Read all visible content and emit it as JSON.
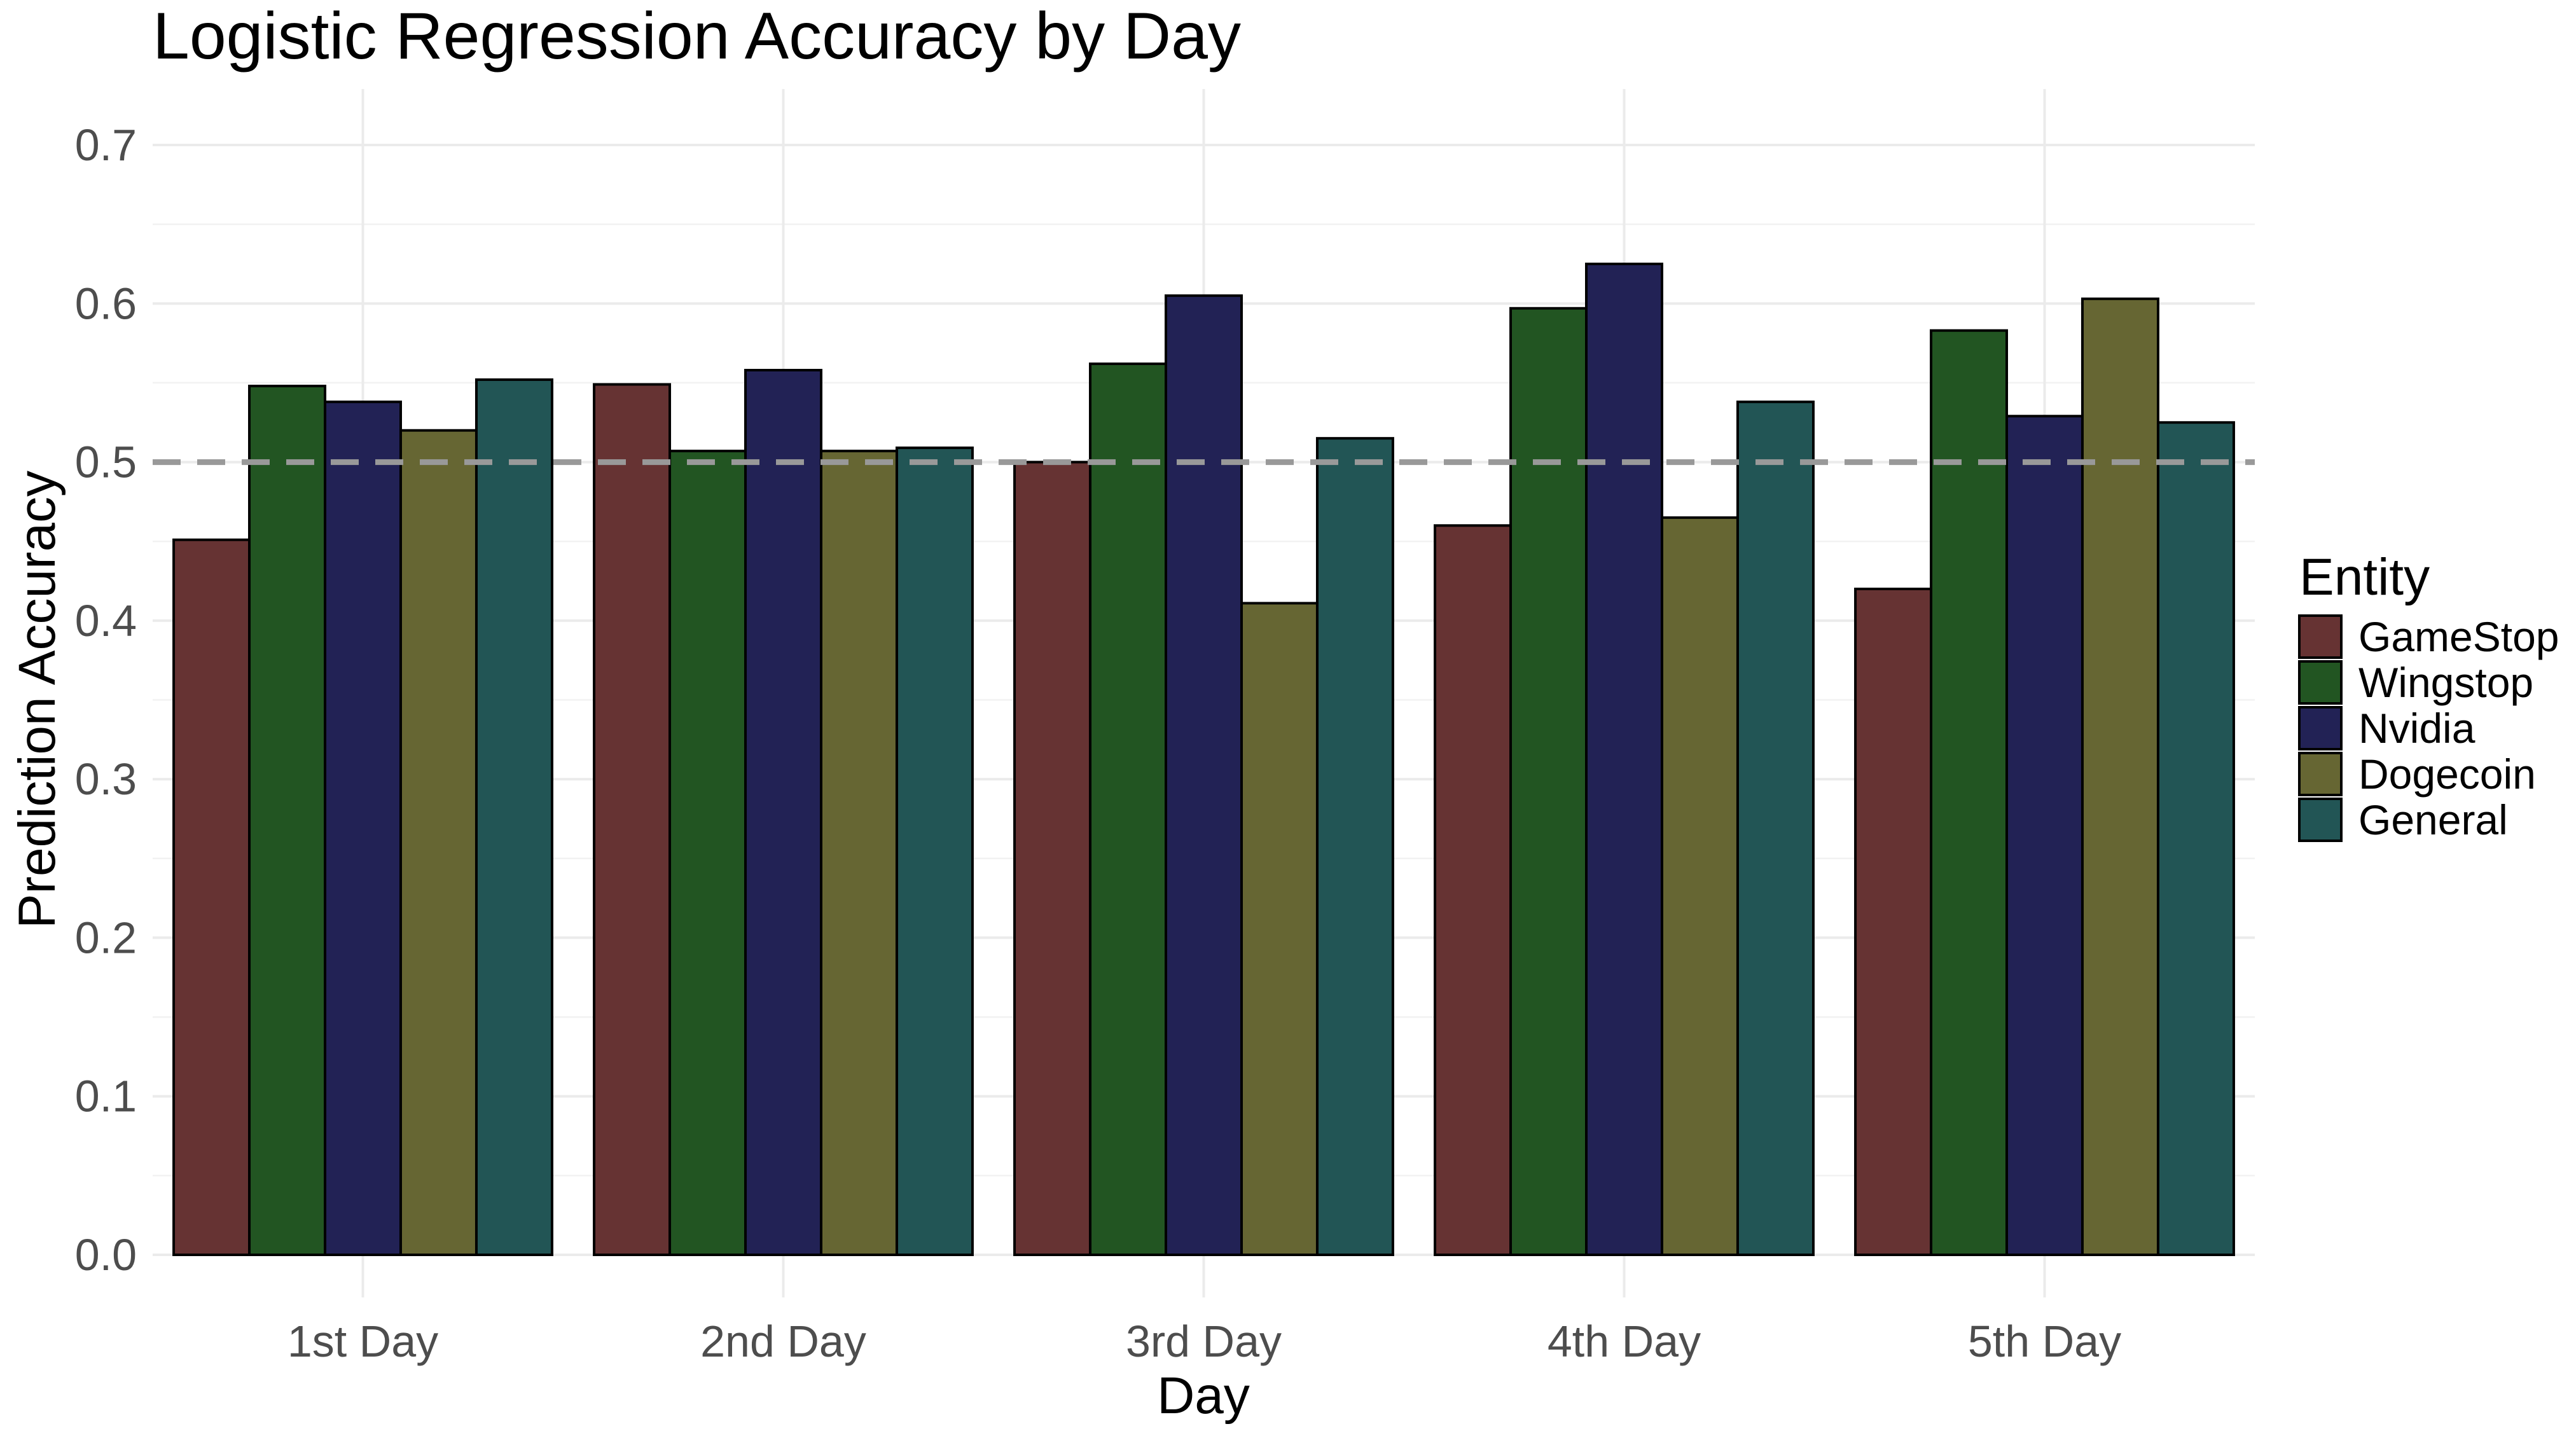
{
  "chart_data": {
    "type": "bar",
    "title": "Logistic Regression Accuracy by Day",
    "xlabel": "Day",
    "ylabel": "Prediction Accuracy",
    "categories": [
      "1st Day",
      "2nd Day",
      "3rd Day",
      "4th Day",
      "5th Day"
    ],
    "series": [
      {
        "name": "GameStop",
        "color": "#663333",
        "values": [
          0.451,
          0.549,
          0.5,
          0.46,
          0.42
        ]
      },
      {
        "name": "Wingstop",
        "color": "#225522",
        "values": [
          0.548,
          0.507,
          0.562,
          0.597,
          0.583
        ]
      },
      {
        "name": "Nvidia",
        "color": "#222255",
        "values": [
          0.538,
          0.558,
          0.605,
          0.625,
          0.529
        ]
      },
      {
        "name": "Dogecoin",
        "color": "#666633",
        "values": [
          0.52,
          0.507,
          0.411,
          0.465,
          0.603
        ]
      },
      {
        "name": "General",
        "color": "#225555",
        "values": [
          0.552,
          0.509,
          0.515,
          0.538,
          0.525
        ]
      }
    ],
    "ylim": [
      0,
      0.73
    ],
    "yticks": [
      0.0,
      0.1,
      0.2,
      0.3,
      0.4,
      0.5,
      0.6,
      0.7
    ],
    "ytick_labels": [
      "0.0",
      "0.1",
      "0.2",
      "0.3",
      "0.4",
      "0.5",
      "0.6",
      "0.7"
    ],
    "reference_line": {
      "y": 0.5,
      "style": "dashed",
      "color": "#999999"
    },
    "grid": true,
    "legend": {
      "title": "Entity",
      "position": "right"
    }
  }
}
